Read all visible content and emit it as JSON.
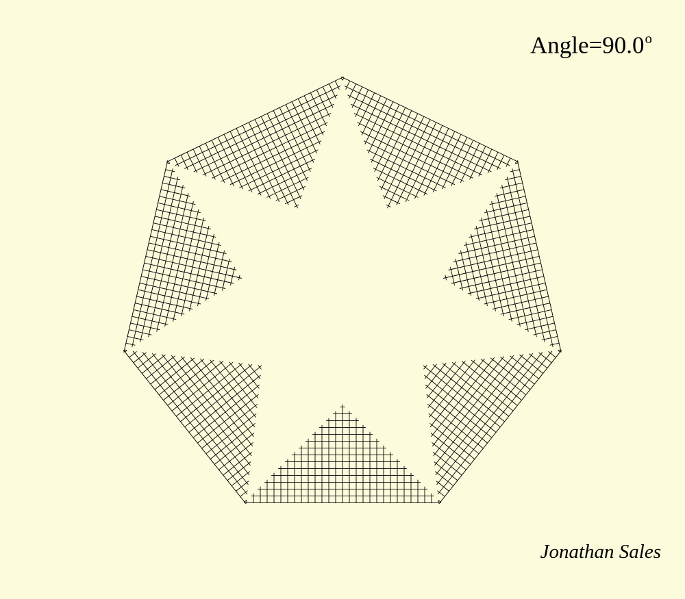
{
  "heading": {
    "prefix": "Angle=",
    "value": "90.0",
    "degree_symbol": "o"
  },
  "author": "Jonathan Sales",
  "figure": {
    "polygon_sides": 7,
    "line_color": "#000000",
    "background_color": "#fcfbdc"
  }
}
